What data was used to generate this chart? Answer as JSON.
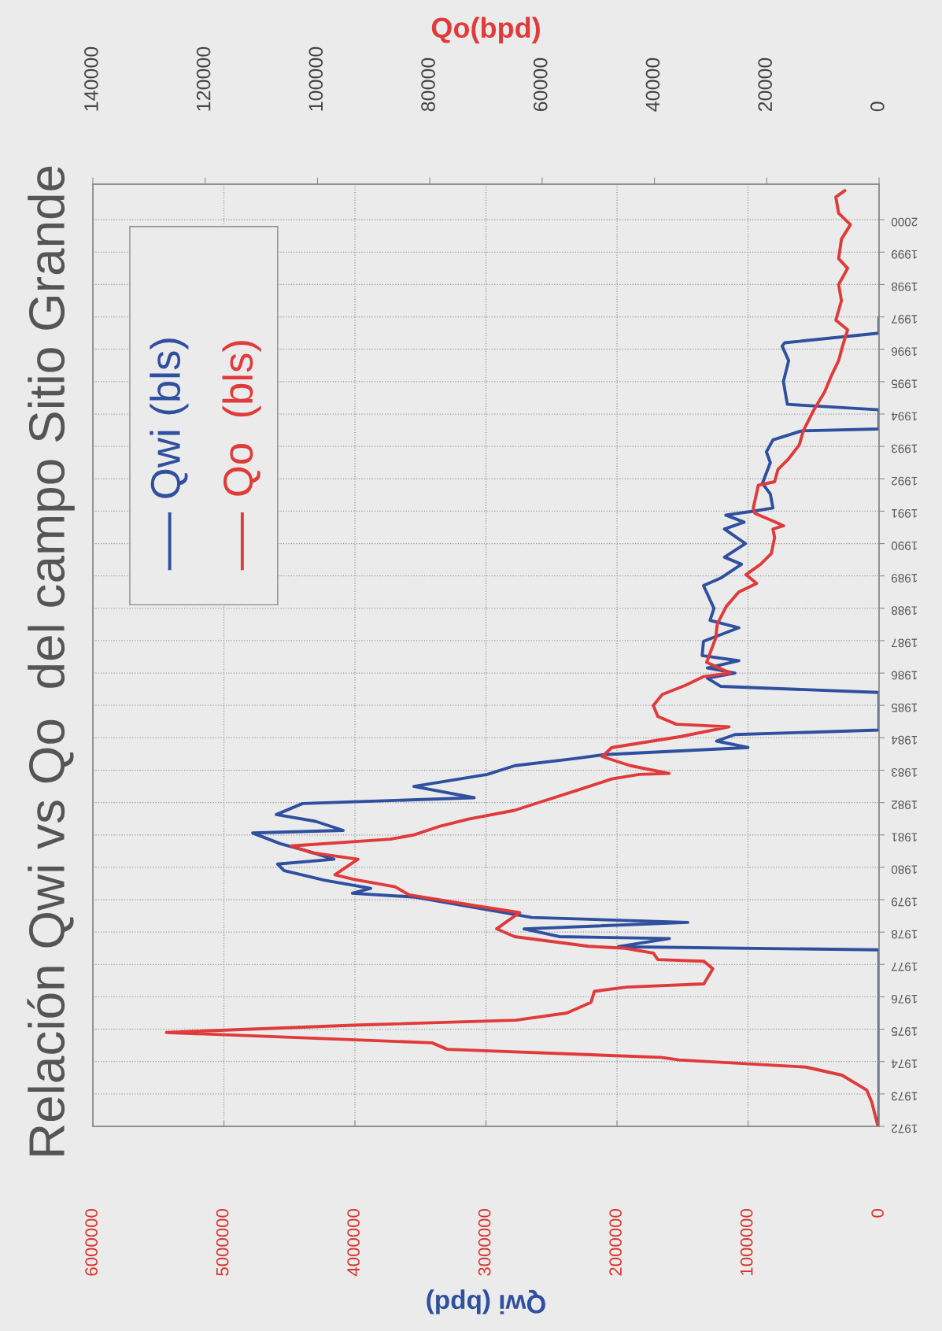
{
  "chart_data": {
    "type": "line",
    "title": "Relación Qwi vs Qo  del campo Sitio Grande",
    "xlabel": "Qwi (bpd)",
    "x2label": "Qo(bpd)",
    "xlim": [
      6000000,
      0
    ],
    "xticks": [
      6000000,
      5000000,
      4000000,
      3000000,
      2000000,
      1000000,
      0
    ],
    "x2lim": [
      140000,
      0
    ],
    "x2ticks": [
      140000,
      120000,
      100000,
      80000,
      60000,
      40000,
      20000,
      0
    ],
    "ylim": [
      1972,
      2001.1
    ],
    "yticks": [
      1972,
      1973,
      1974,
      1975,
      1976,
      1977,
      1978,
      1979,
      1980,
      1981,
      1982,
      1983,
      1984,
      1985,
      1986,
      1987,
      1988,
      1989,
      1990,
      1991,
      1992,
      1993,
      1994,
      1995,
      1996,
      1997,
      1998,
      1999,
      2000
    ],
    "grid": true,
    "legend": "top left",
    "series": [
      {
        "name": "Qwi (bls)",
        "color": "#2f4f9f",
        "x": [
          0,
          0,
          1990000,
          1600000,
          2440000,
          2710000,
          1460000,
          2650000,
          3540000,
          4020000,
          3880000,
          4230000,
          4540000,
          4590000,
          4160000,
          4360000,
          4570000,
          4780000,
          4090000,
          4300000,
          4600000,
          4400000,
          3090000,
          3550000,
          2990000,
          2780000,
          2340000,
          2100000,
          1000000,
          1240000,
          1100000,
          0,
          0,
          1210000,
          1310000,
          1100000,
          1310000,
          1070000,
          1350000,
          1340000,
          1070000,
          1290000,
          1260000,
          1340000,
          1210000,
          1050000,
          1180000,
          1020000,
          1180000,
          1030000,
          1170000,
          940000,
          810000,
          830000,
          890000,
          830000,
          860000,
          810000,
          590000,
          0,
          0,
          700000,
          730000,
          690000,
          740000,
          720000,
          0,
          0
        ],
        "values": [
          1972.0,
          1977.45,
          1977.55,
          1977.8,
          1977.86,
          1978.1,
          1978.3,
          1978.45,
          1979.08,
          1979.2,
          1979.35,
          1979.6,
          1979.9,
          1980.1,
          1980.25,
          1980.5,
          1980.73,
          1981.06,
          1981.14,
          1981.42,
          1981.63,
          1981.97,
          1982.15,
          1982.5,
          1982.87,
          1983.14,
          1983.35,
          1983.48,
          1983.7,
          1983.9,
          1984.1,
          1984.24,
          1985.4,
          1985.59,
          1985.84,
          1986.0,
          1986.16,
          1986.38,
          1986.54,
          1986.98,
          1987.4,
          1987.63,
          1988.0,
          1988.7,
          1988.93,
          1989.36,
          1989.58,
          1990.0,
          1990.45,
          1990.66,
          1990.88,
          1991.01,
          1991.1,
          1991.53,
          1991.86,
          1992.5,
          1992.83,
          1993.2,
          1993.48,
          1993.54,
          1994.13,
          1994.3,
          1995.0,
          1995.65,
          1996.1,
          1996.2,
          1996.5,
          1997.0
        ]
      },
      {
        "name": "Qo  (bls)",
        "color": "#e03a3a",
        "axis": "x2",
        "x": [
          200,
          1300,
          2200,
          6600,
          13000,
          35600,
          38800,
          76900,
          79600,
          126900,
          92700,
          64700,
          55600,
          51300,
          50700,
          45000,
          31200,
          29600,
          31200,
          39400,
          40200,
          45200,
          51700,
          64900,
          68100,
          66500,
          64000,
          71400,
          83700,
          86200,
          93600,
          96900,
          95200,
          92800,
          101000,
          104700,
          87000,
          82900,
          78000,
          73100,
          64900,
          59900,
          52500,
          47600,
          42700,
          37400,
          44300,
          49300,
          47600,
          35300,
          26700,
          36100,
          39400,
          40200,
          38600,
          34500,
          31300,
          26500,
          30700,
          29100,
          28800,
          27200,
          25000,
          21800,
          23700,
          21100,
          19200,
          18600,
          18900,
          17000,
          19200,
          22100,
          22400,
          21500,
          18600,
          18000,
          16100,
          14200,
          13500,
          11600,
          9700,
          8400,
          7200,
          6500,
          5600,
          7700,
          6700,
          7200,
          5600,
          7200,
          6700,
          5100,
          7200,
          7700,
          6100
        ],
        "values": [
          1972.0,
          1972.75,
          1973.12,
          1973.58,
          1973.83,
          1974.05,
          1974.13,
          1974.38,
          1974.58,
          1974.9,
          1975.13,
          1975.28,
          1975.5,
          1975.83,
          1976.17,
          1976.3,
          1976.4,
          1976.87,
          1977.1,
          1977.15,
          1977.35,
          1977.5,
          1977.56,
          1977.86,
          1978.1,
          1978.3,
          1978.6,
          1978.8,
          1979.15,
          1979.4,
          1979.63,
          1979.77,
          1979.97,
          1980.25,
          1980.45,
          1980.66,
          1980.87,
          1981.0,
          1981.28,
          1981.49,
          1981.76,
          1982.04,
          1982.45,
          1982.73,
          1982.87,
          1982.9,
          1983.14,
          1983.42,
          1983.7,
          1984.04,
          1984.34,
          1984.42,
          1984.66,
          1985.0,
          1985.34,
          1985.62,
          1985.89,
          1986.0,
          1986.33,
          1987.08,
          1987.52,
          1988.06,
          1988.5,
          1988.77,
          1989.04,
          1989.36,
          1989.69,
          1990.18,
          1990.45,
          1990.55,
          1990.72,
          1990.93,
          1991.1,
          1991.8,
          1991.91,
          1992.29,
          1992.62,
          1993.05,
          1993.48,
          1994.13,
          1994.68,
          1995.22,
          1995.65,
          1996.1,
          1996.6,
          1996.9,
          1997.5,
          1998.0,
          1998.5,
          1998.8,
          1999.4,
          1999.85,
          2000.2,
          2000.7,
          2000.9
        ]
      }
    ]
  }
}
